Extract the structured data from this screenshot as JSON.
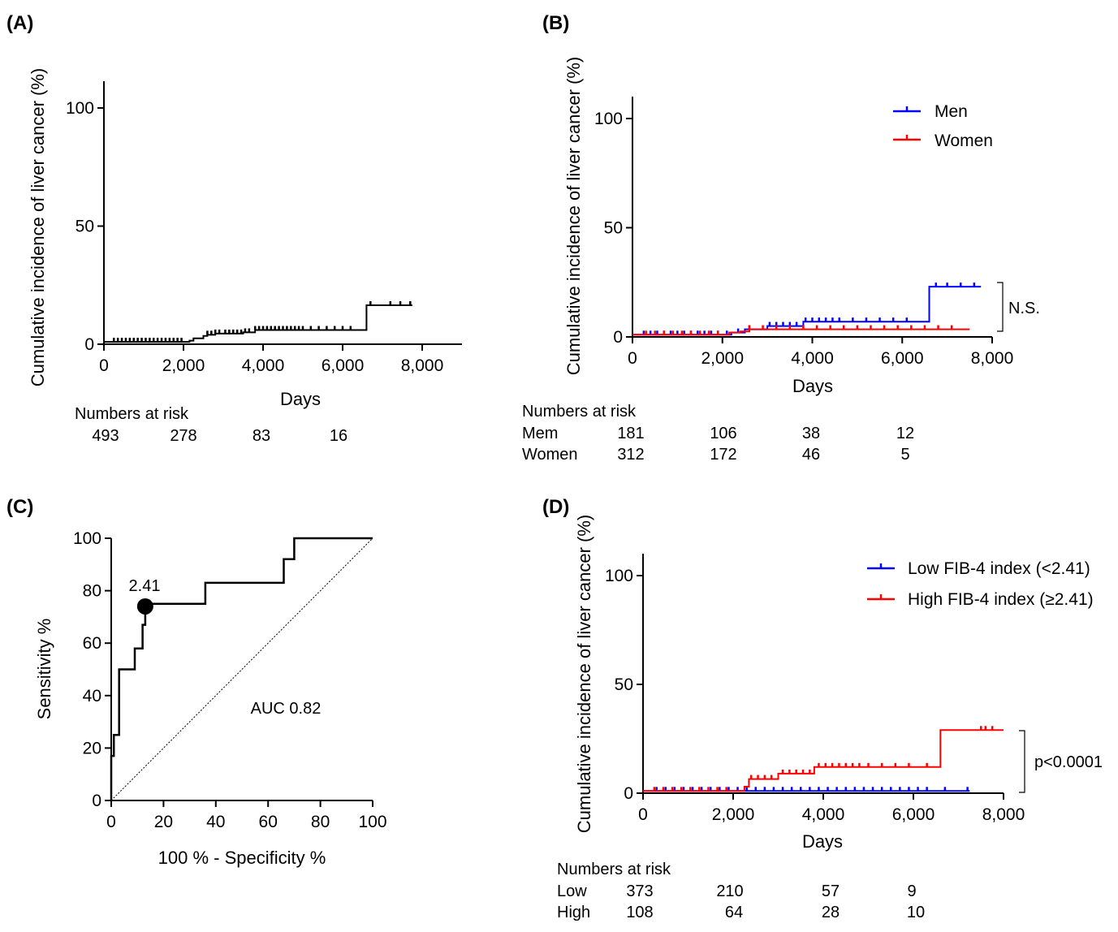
{
  "chart_data": [
    {
      "panel": "(A)",
      "type": "line",
      "xlabel": "Days",
      "ylabel": "Cumulative incidence of liver cancer (%)",
      "xlim": [
        0,
        9000
      ],
      "ylim": [
        0,
        110
      ],
      "x_ticks": [
        "0",
        "2,000",
        "4,000",
        "6,000",
        "8,000"
      ],
      "y_ticks": [
        "0",
        "50",
        "100"
      ],
      "series": [
        {
          "color": "#000000",
          "x": [
            0,
            2050,
            2150,
            2250,
            2500,
            2600,
            2800,
            3500,
            3800,
            6200,
            6600,
            7750
          ],
          "y": [
            1,
            1,
            1.5,
            2.5,
            3.5,
            4,
            4.5,
            5,
            6,
            6,
            16.5,
            16.5
          ],
          "censor_x": [
            250,
            350,
            450,
            550,
            650,
            750,
            850,
            950,
            1050,
            1150,
            1250,
            1350,
            1450,
            1550,
            1650,
            1750,
            1850,
            1950,
            2600,
            2700,
            2800,
            2900,
            3050,
            3150,
            3250,
            3350,
            3450,
            3550,
            3650,
            3800,
            3900,
            4000,
            4100,
            4200,
            4300,
            4400,
            4500,
            4600,
            4700,
            4800,
            4900,
            5000,
            5200,
            5400,
            5600,
            5800,
            6000,
            6200,
            6700,
            7200,
            7450,
            7700
          ]
        }
      ],
      "risk_table": {
        "title": "Numbers at risk",
        "rows": [
          {
            "label": "",
            "values": [
              "493",
              "278",
              "83",
              "16"
            ]
          }
        ]
      }
    },
    {
      "panel": "(B)",
      "type": "line",
      "xlabel": "Days",
      "ylabel": "Cumulative incidence of liver cancer (%)",
      "xlim": [
        0,
        8000
      ],
      "ylim": [
        0,
        110
      ],
      "x_ticks": [
        "0",
        "2,000",
        "4,000",
        "6,000",
        "8,000"
      ],
      "y_ticks": [
        "0",
        "50",
        "100"
      ],
      "legend_position": "top-right",
      "series": [
        {
          "name": "Men",
          "color": "#0000ff",
          "x": [
            0,
            2000,
            2200,
            2500,
            3000,
            3800,
            6600,
            7750
          ],
          "y": [
            1,
            1,
            2,
            3.5,
            5,
            7,
            23,
            23
          ],
          "censor_x": [
            250,
            400,
            550,
            700,
            850,
            1000,
            1150,
            1300,
            1450,
            1600,
            1750,
            1900,
            2100,
            2350,
            2600,
            3050,
            3200,
            3350,
            3500,
            3650,
            3850,
            4000,
            4150,
            4300,
            4450,
            4600,
            4900,
            5200,
            5500,
            5800,
            6100,
            6750,
            7000,
            7300,
            7600
          ]
        },
        {
          "name": "Women",
          "color": "#ff0000",
          "x": [
            0,
            2000,
            2150,
            2400,
            2600,
            7500
          ],
          "y": [
            1,
            1,
            2,
            2.5,
            3.5,
            3.5
          ],
          "censor_x": [
            300,
            500,
            700,
            900,
            1100,
            1300,
            1500,
            1700,
            1900,
            2600,
            2900,
            3200,
            3500,
            3800,
            4100,
            4400,
            4700,
            5000,
            5300,
            5600,
            5900,
            6200,
            6500,
            6800,
            7100
          ]
        }
      ],
      "annotation": "N.S.",
      "risk_table": {
        "title": "Numbers at risk",
        "rows": [
          {
            "label": "Mem",
            "values": [
              "181",
              "106",
              "38",
              "12"
            ]
          },
          {
            "label": "Women",
            "values": [
              "312",
              "172",
              "46",
              "5"
            ]
          }
        ]
      }
    },
    {
      "panel": "(C)",
      "type": "line",
      "xlabel": "100 % - Specificity %",
      "ylabel": "Sensitivity %",
      "xlim": [
        0,
        100
      ],
      "ylim": [
        0,
        100
      ],
      "x_ticks": [
        "0",
        "20",
        "40",
        "60",
        "80",
        "100"
      ],
      "y_ticks": [
        "0",
        "20",
        "40",
        "60",
        "80",
        "100"
      ],
      "series": [
        {
          "color": "#000000",
          "x": [
            0,
            0,
            1,
            1,
            3,
            3,
            4,
            4,
            9,
            9,
            12,
            12,
            13,
            13,
            36,
            36,
            66,
            66,
            70,
            70,
            100
          ],
          "y": [
            0,
            17,
            17,
            25,
            25,
            50,
            50,
            50,
            50,
            58,
            58,
            67,
            67,
            75,
            75,
            83,
            83,
            92,
            92,
            100,
            100
          ]
        }
      ],
      "reference_line": {
        "x": [
          0,
          100
        ],
        "y": [
          0,
          100
        ]
      },
      "cutoff_point": {
        "x": 13,
        "y": 74,
        "label": "2.41"
      },
      "annotation": "AUC 0.82"
    },
    {
      "panel": "(D)",
      "type": "line",
      "xlabel": "Days",
      "ylabel": "Cumulative incidence of liver cancer (%)",
      "xlim": [
        0,
        8000
      ],
      "ylim": [
        0,
        110
      ],
      "x_ticks": [
        "0",
        "2,000",
        "4,000",
        "6,000",
        "8,000"
      ],
      "y_ticks": [
        "0",
        "50",
        "100"
      ],
      "legend_position": "top-right",
      "series": [
        {
          "name": "Low FIB-4 index (<2.41)",
          "color": "#0000ff",
          "x": [
            0,
            7250
          ],
          "y": [
            1,
            1
          ],
          "censor_x": [
            300,
            500,
            700,
            900,
            1100,
            1300,
            1500,
            1700,
            1900,
            2100,
            2300,
            2500,
            2700,
            2900,
            3100,
            3300,
            3500,
            3700,
            3900,
            4100,
            4300,
            4500,
            4700,
            4900,
            5100,
            5300,
            5500,
            5700,
            5900,
            6100,
            6300,
            6700,
            7200
          ]
        },
        {
          "name": "High FIB-4 index (≥2.41)",
          "color": "#ff0000",
          "x": [
            0,
            2200,
            2250,
            2350,
            3000,
            3800,
            6600,
            8000
          ],
          "y": [
            1,
            1,
            3,
            6.5,
            9,
            12,
            29,
            29
          ],
          "censor_x": [
            250,
            450,
            650,
            850,
            1050,
            1250,
            1450,
            1650,
            1850,
            2400,
            2550,
            2700,
            2850,
            3100,
            3250,
            3400,
            3550,
            3700,
            3900,
            4050,
            4200,
            4350,
            4500,
            4650,
            4800,
            5000,
            5300,
            5600,
            5900,
            6300,
            7500,
            7600,
            7750
          ]
        }
      ],
      "annotation": "p<0.0001",
      "risk_table": {
        "title": "Numbers at risk",
        "rows": [
          {
            "label": "Low",
            "values": [
              "373",
              "210",
              "57",
              "9"
            ]
          },
          {
            "label": "High",
            "values": [
              "108",
              "64",
              "28",
              "10"
            ]
          }
        ]
      }
    }
  ]
}
